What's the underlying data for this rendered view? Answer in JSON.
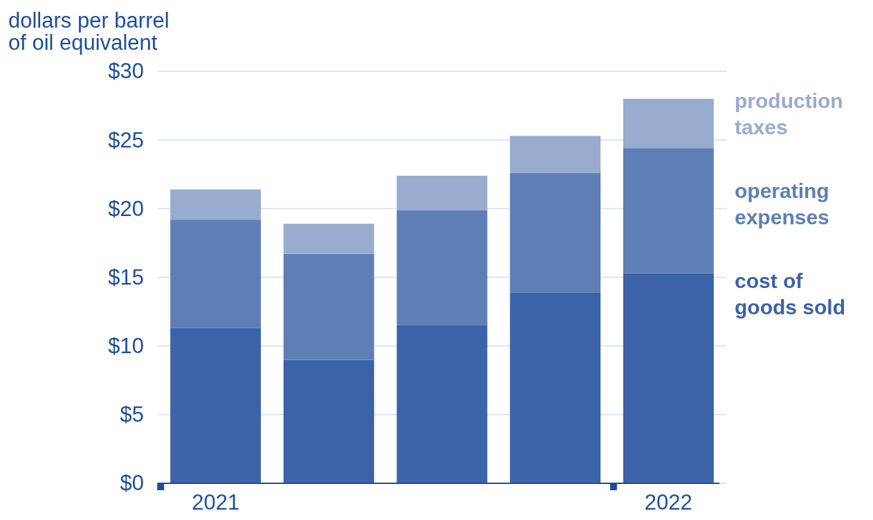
{
  "chart_data": {
    "type": "bar",
    "stacked": true,
    "ylabel": "dollars per barrel of oil equivalent",
    "categories": [
      "2021",
      null,
      null,
      null,
      "2022"
    ],
    "series": [
      {
        "name": "cost of goods sold",
        "color": "#3c62a8",
        "values": [
          11.3,
          9.0,
          11.5,
          13.9,
          15.3
        ]
      },
      {
        "name": "operating expenses",
        "color": "#5e7fb6",
        "values": [
          7.9,
          7.7,
          8.4,
          8.7,
          9.1
        ]
      },
      {
        "name": "production taxes",
        "color": "#98acd0",
        "values": [
          2.2,
          2.2,
          2.5,
          2.7,
          3.6
        ]
      }
    ],
    "ylim": [
      0,
      30
    ],
    "yticks": [
      {
        "value": 0,
        "label": "$0"
      },
      {
        "value": 5,
        "label": "$5"
      },
      {
        "value": 10,
        "label": "$10"
      },
      {
        "value": 15,
        "label": "$15"
      },
      {
        "value": 20,
        "label": "$20"
      },
      {
        "value": 25,
        "label": "$25"
      },
      {
        "value": 30,
        "label": "$30"
      }
    ],
    "grid": "y",
    "legend": "right"
  }
}
